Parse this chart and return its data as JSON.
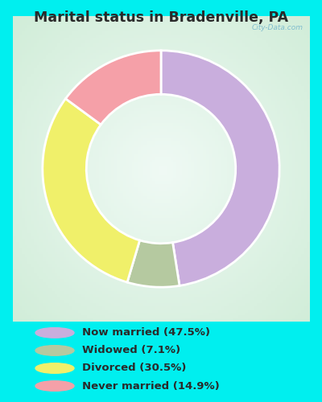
{
  "title": "Marital status in Bradenville, PA",
  "outer_bg": "#00EFEF",
  "chart_bg_center": "#f0faf4",
  "chart_bg_edge": "#d0eed8",
  "slices": [
    47.5,
    7.1,
    30.5,
    14.9
  ],
  "colors": [
    "#c9aedd",
    "#b5c9a0",
    "#f0f06a",
    "#f5a0a8"
  ],
  "labels": [
    "Now married (47.5%)",
    "Widowed (7.1%)",
    "Divorced (30.5%)",
    "Never married (14.9%)"
  ],
  "legend_colors": [
    "#c9aedd",
    "#b5c9a0",
    "#f0f06a",
    "#f5a0a8"
  ],
  "title_color": "#2a2a2a",
  "legend_text_color": "#2a2a2a",
  "watermark": "City-Data.com",
  "startangle": 90,
  "donut_width": 0.37
}
